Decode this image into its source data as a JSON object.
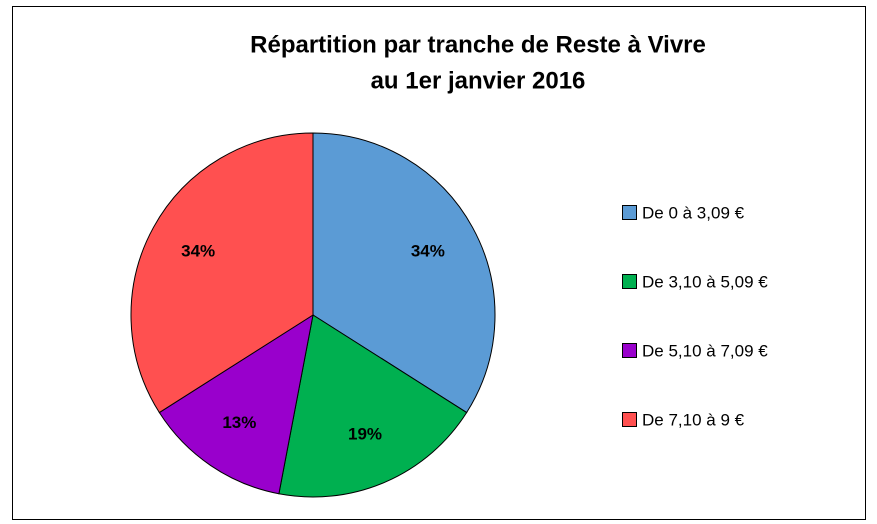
{
  "chart_data": {
    "type": "pie",
    "title": [
      "Répartition par tranche de Reste à Vivre",
      "au 1er janvier 2016"
    ],
    "categories": [
      "De 0 à 3,09 €",
      "De 3,10 à 5,09 €",
      "De 5,10 à 7,09 €",
      "De 7,10 à 9 €"
    ],
    "values": [
      34,
      19,
      13,
      34
    ],
    "value_labels": [
      "34%",
      "19%",
      "13%",
      "34%"
    ],
    "colors": [
      "#5b9bd5",
      "#00b050",
      "#9900cc",
      "#ff5050"
    ],
    "legend": "right"
  }
}
